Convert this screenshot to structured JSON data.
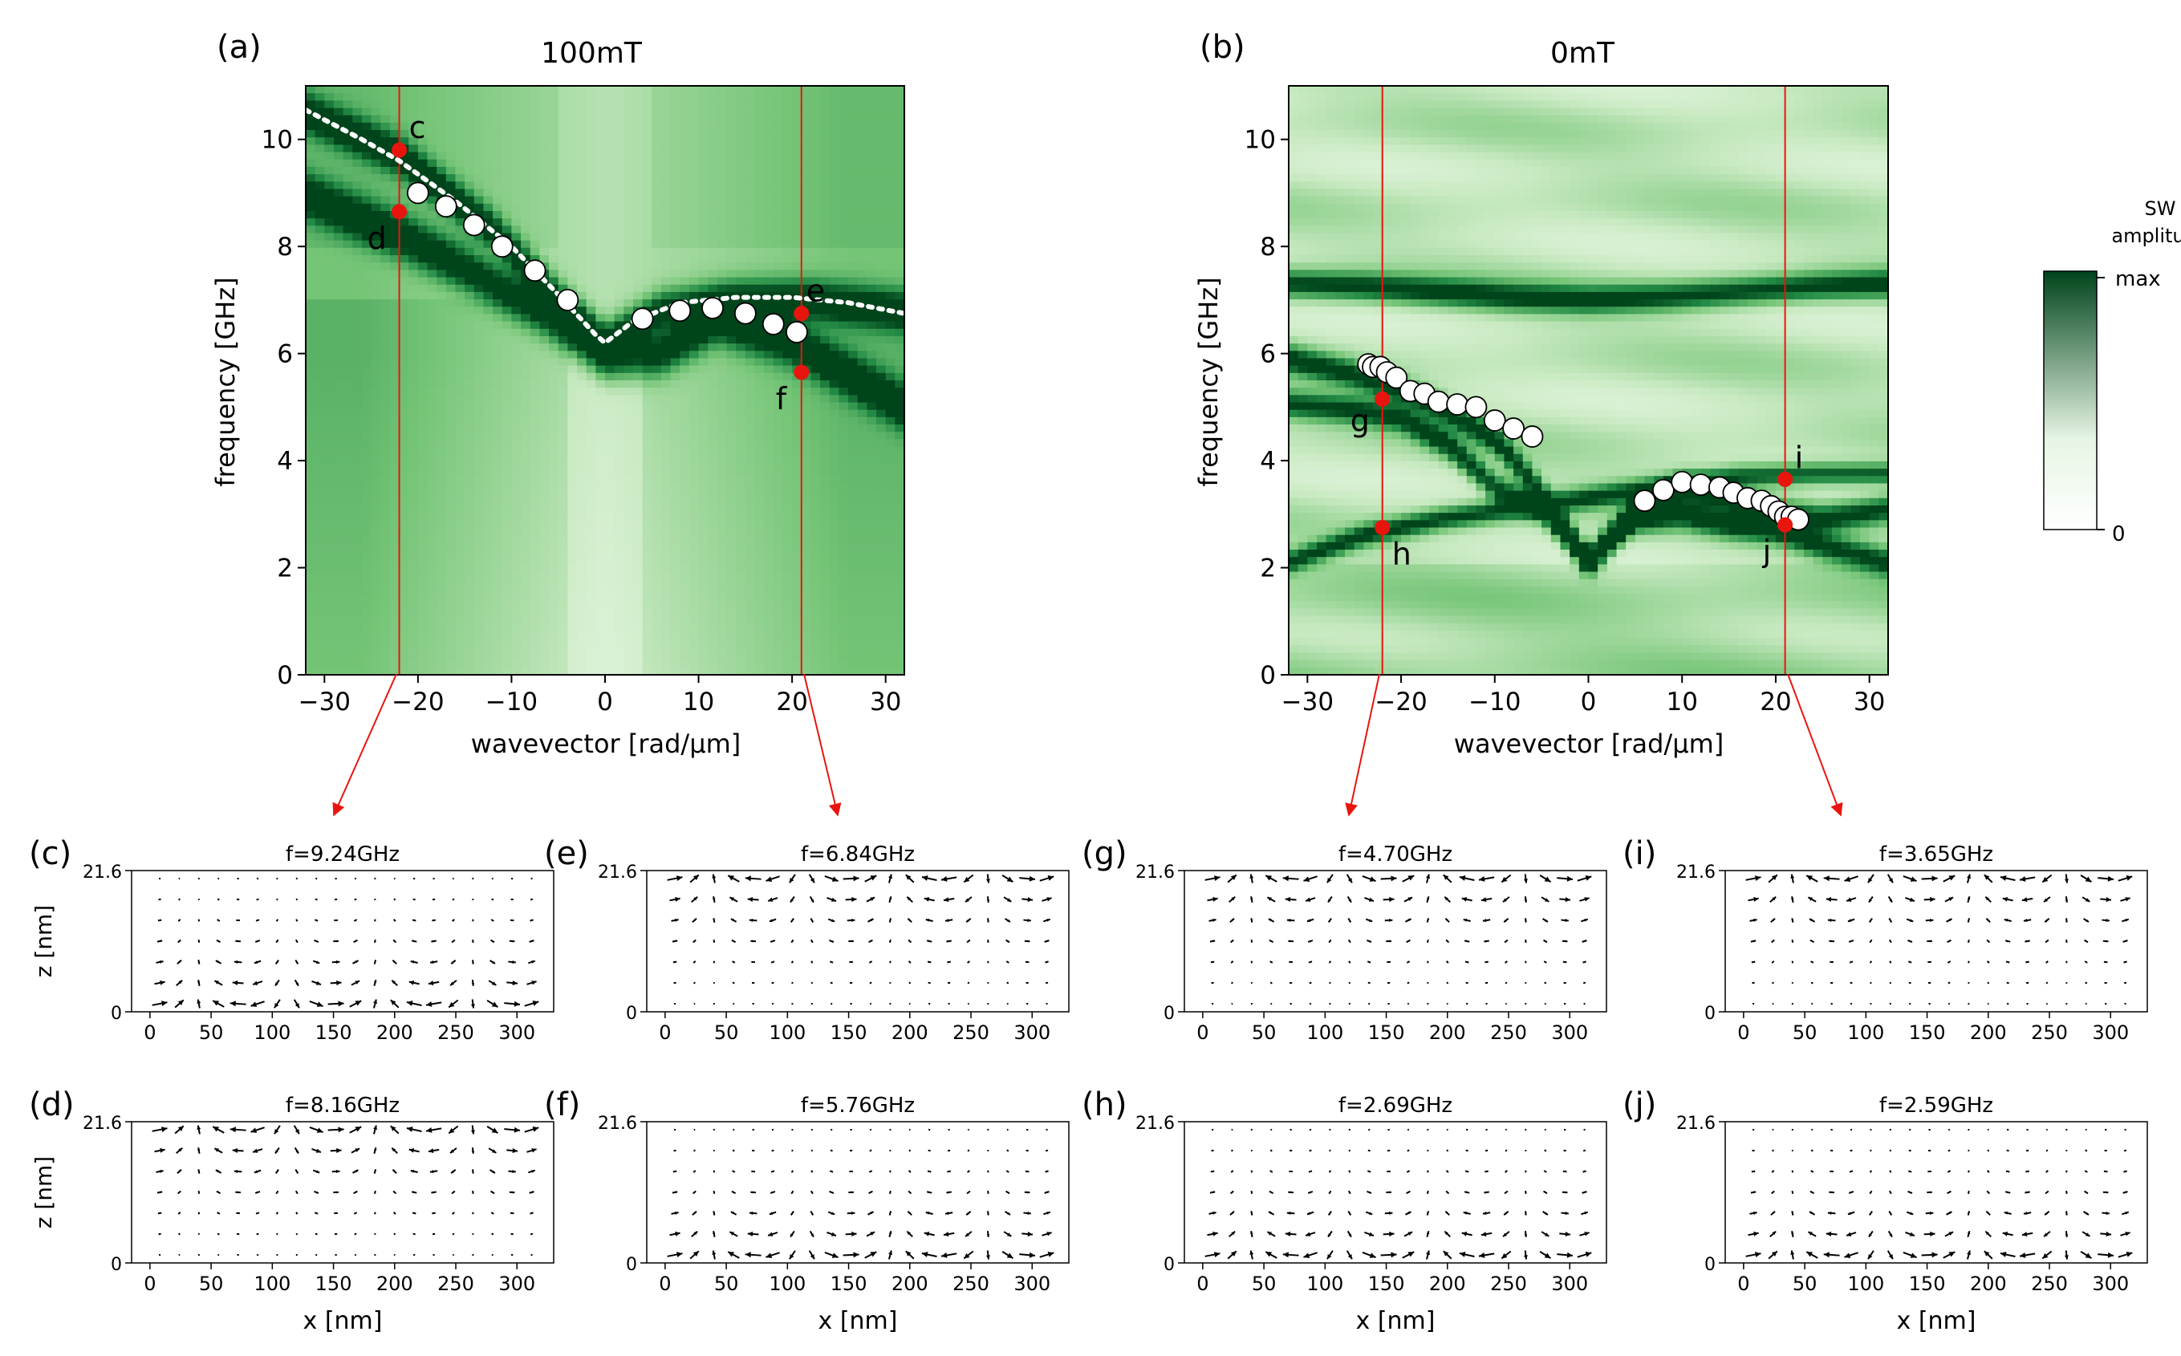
{
  "chart_data": [
    {
      "id": "a",
      "type": "heatmap",
      "panel_label": "(a)",
      "title": "100mT",
      "xlabel": "wavevector [rad/μm]",
      "ylabel": "frequency [GHz]",
      "xlim": [
        -32,
        32
      ],
      "ylim": [
        0,
        11
      ],
      "xticks": [
        -30,
        -20,
        -10,
        0,
        10,
        20,
        30
      ],
      "yticks": [
        0,
        2,
        4,
        6,
        8,
        10
      ],
      "modes": [
        {
          "name": "mode-1",
          "k": [
            -32,
            -26,
            -22,
            -14,
            -6,
            0,
            6,
            12,
            20,
            26,
            32
          ],
          "f": [
            8.95,
            8.5,
            8.2,
            7.5,
            6.7,
            5.9,
            6.0,
            6.6,
            6.2,
            5.6,
            5.0
          ],
          "width": 0.4
        },
        {
          "name": "mode-2",
          "k": [
            -32,
            -22,
            -12,
            -5,
            0,
            6,
            14,
            22,
            32
          ],
          "f": [
            10.5,
            9.7,
            8.3,
            7.0,
            6.2,
            6.8,
            7.0,
            7.0,
            6.8
          ],
          "width": 0.35
        }
      ],
      "vertical_lines_k": [
        -22,
        21
      ],
      "simulated_points": {
        "k": [
          -20,
          -17,
          -14,
          -11,
          -7.5,
          -4,
          4,
          8,
          11.5,
          15,
          18,
          20.5
        ],
        "f": [
          9.0,
          8.75,
          8.4,
          8.0,
          7.55,
          7.0,
          6.65,
          6.8,
          6.85,
          6.75,
          6.55,
          6.4
        ]
      },
      "dotted_curve": {
        "k": [
          -32,
          -26,
          -22,
          -16,
          -10,
          -5,
          -1,
          0,
          3,
          8,
          14,
          20,
          26,
          32
        ],
        "f": [
          10.55,
          10.0,
          9.6,
          8.85,
          8.0,
          7.1,
          6.35,
          6.2,
          6.6,
          6.95,
          7.05,
          7.05,
          6.95,
          6.75
        ]
      },
      "marked_points": [
        {
          "label": "c",
          "k": -22,
          "f": 9.8
        },
        {
          "label": "d",
          "k": -22,
          "f": 8.65
        },
        {
          "label": "e",
          "k": 21,
          "f": 6.75
        },
        {
          "label": "f",
          "k": 21,
          "f": 5.65
        }
      ]
    },
    {
      "id": "b",
      "type": "heatmap",
      "panel_label": "(b)",
      "title": "0mT",
      "xlabel": "wavevector [rad/μm]",
      "ylabel": "frequency [GHz]",
      "xlim": [
        -32,
        32
      ],
      "ylim": [
        0,
        11
      ],
      "xticks": [
        -30,
        -20,
        -10,
        0,
        10,
        20,
        30
      ],
      "yticks": [
        0,
        2,
        4,
        6,
        8,
        10
      ],
      "modes": [
        {
          "name": "mode-1",
          "k": [
            -32,
            -25,
            -20,
            -15,
            -10,
            -5,
            0,
            5,
            10,
            15,
            20,
            25,
            32
          ],
          "f": [
            5.9,
            5.6,
            5.3,
            4.9,
            4.4,
            3.4,
            2.1,
            3.1,
            3.5,
            3.3,
            3.0,
            2.9,
            3.1
          ],
          "width": 0.25
        },
        {
          "name": "mode-2",
          "k": [
            -32,
            -25,
            -20,
            -15,
            -10,
            -5,
            0,
            5,
            10,
            15,
            20,
            25,
            32
          ],
          "f": [
            5.05,
            4.95,
            4.8,
            4.3,
            3.5,
            3.1,
            2.1,
            2.9,
            3.0,
            2.8,
            2.7,
            2.4,
            2.1
          ],
          "width": 0.25
        },
        {
          "name": "mode-3",
          "k": [
            -32,
            -24,
            -16,
            -8,
            0,
            8,
            16,
            24,
            32
          ],
          "f": [
            2.1,
            2.6,
            2.9,
            3.1,
            3.3,
            3.5,
            3.7,
            3.75,
            3.75
          ],
          "width": 0.2
        },
        {
          "name": "mode-4",
          "k": [
            -32,
            -24,
            -16,
            -8,
            0,
            8,
            16,
            24,
            32
          ],
          "f": [
            7.3,
            7.25,
            7.15,
            7.05,
            7.0,
            7.05,
            7.15,
            7.25,
            7.3
          ],
          "width": 0.25
        }
      ],
      "vertical_lines_k": [
        -22,
        21
      ],
      "simulated_points": {
        "k": [
          -23.5,
          -23,
          -22.2,
          -21.5,
          -20.5,
          -19,
          -17.5,
          -16,
          -14,
          -12,
          -10,
          -8,
          -6,
          6,
          8,
          10,
          12,
          14,
          15.5,
          17,
          18.5,
          19.5,
          20.3,
          21,
          21.7,
          22.4
        ],
        "f": [
          5.8,
          5.75,
          5.75,
          5.65,
          5.55,
          5.3,
          5.25,
          5.1,
          5.05,
          5.0,
          4.75,
          4.6,
          4.45,
          3.25,
          3.45,
          3.6,
          3.55,
          3.5,
          3.4,
          3.3,
          3.25,
          3.15,
          3.05,
          2.95,
          2.95,
          2.9
        ]
      },
      "marked_points": [
        {
          "label": "g",
          "k": -22,
          "f": 5.15
        },
        {
          "label": "h",
          "k": -22,
          "f": 2.75
        },
        {
          "label": "i",
          "k": 21,
          "f": 3.65
        },
        {
          "label": "j",
          "k": 21,
          "f": 2.8
        }
      ]
    }
  ],
  "colorbar": {
    "title_line1": "SW",
    "title_line2": "amplitude",
    "max_label": "max",
    "min_label": "0",
    "colors": [
      "#00441b",
      "#e7f5e4",
      "#ffffff"
    ]
  },
  "arrow_color": "#e8150e",
  "profile_panels": [
    {
      "label": "(c)",
      "title": "f=9.24GHz",
      "pattern": "c"
    },
    {
      "label": "(e)",
      "title": "f=6.84GHz",
      "pattern": "e"
    },
    {
      "label": "(g)",
      "title": "f=4.70GHz",
      "pattern": "g"
    },
    {
      "label": "(i)",
      "title": "f=3.65GHz",
      "pattern": "i"
    },
    {
      "label": "(d)",
      "title": "f=8.16GHz",
      "pattern": "d"
    },
    {
      "label": "(f)",
      "title": "f=5.76GHz",
      "pattern": "f"
    },
    {
      "label": "(h)",
      "title": "f=2.69GHz",
      "pattern": "h"
    },
    {
      "label": "(j)",
      "title": "f=2.59GHz",
      "pattern": "j"
    }
  ],
  "profile_axes": {
    "xlabel": "x [nm]",
    "ylabel": "z [nm]",
    "xticks": [
      0,
      50,
      100,
      150,
      200,
      250,
      300
    ],
    "xlim": [
      -15,
      330
    ],
    "ytick_labels": [
      "0",
      "21.6"
    ]
  }
}
